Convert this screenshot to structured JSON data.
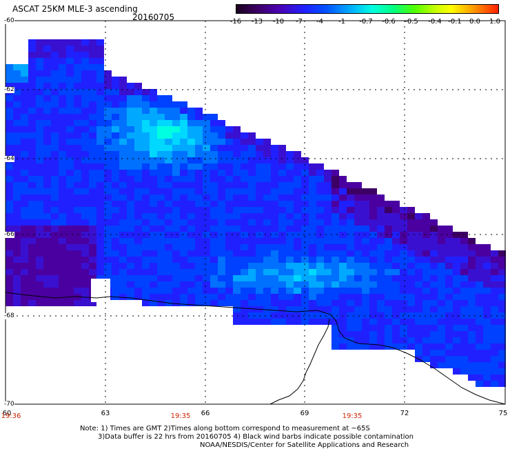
{
  "header": {
    "title": "ASCAT 25KM MLE-3 ascending",
    "date": "20160705"
  },
  "colorbar": {
    "labels": [
      "-16",
      "-13",
      "-10",
      "-7",
      "-4",
      "-1",
      "-0.7",
      "-0.6",
      "-0.5",
      "-0.4",
      "-0.1",
      "0.0",
      "1.0"
    ],
    "colors": [
      "#1a001e",
      "#3c0064",
      "#4b00b0",
      "#2020ff",
      "#0050ff",
      "#00b0ff",
      "#00ffe0",
      "#00ff80",
      "#50ff00",
      "#c8ff00",
      "#ffff00",
      "#ffa000",
      "#ff2000"
    ]
  },
  "map": {
    "lat_labels": [
      "-60",
      "-62",
      "-64",
      "-66",
      "-68",
      "-70"
    ],
    "lon_labels": [
      "60",
      "63",
      "66",
      "69",
      "72",
      "75"
    ],
    "times": [
      "19:36",
      "19:35",
      "19:35"
    ]
  },
  "footer": {
    "note_line1": "Note: 1) Times are GMT 2)Times along bottom correspond to measurement at ~65S",
    "note_line2": "3)Data buffer is 22 hrs from 20160705 4) Black wind barbs indicate possible contamination",
    "note_line3": "NOAA/NESDIS/Center for Satellite Applications and Research"
  }
}
